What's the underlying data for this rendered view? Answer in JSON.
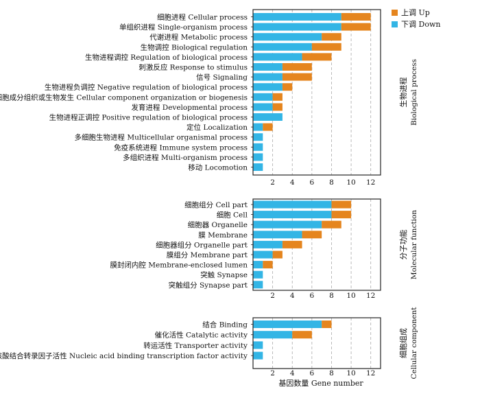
{
  "colors": {
    "down": "#33b5e5",
    "up": "#e5851e",
    "frame": "#222222",
    "grid": "#aaaaaa"
  },
  "legend": {
    "up_label": "上调  Up",
    "down_label": "下调  Down"
  },
  "xlabel": "基因数量  Gene number",
  "chart_data": [
    {
      "type": "bar",
      "stacked": true,
      "orientation": "horizontal",
      "panel_label_cn": "生物进程",
      "panel_label_en": "Biological process",
      "categories": [
        "细胞进程  Cellular process",
        "单组织进程  Single-organism process",
        "代谢进程  Metabolic process",
        "生物调控  Biological regulation",
        "生物进程调控  Regulation of biological process",
        "刺激反应  Response to stimulus",
        "信号  Signaling",
        "生物进程负调控  Negative regulation of biological process",
        "细胞成分组织或生物发生  Cellular component organization or biogenesis",
        "发育进程  Developmental process",
        "生物进程正调控  Positive regulation of biological process",
        "定位  Localization",
        "多细胞生物进程  Multicellular organismal process",
        "免疫系统进程  Immune system process",
        "多组织进程  Multi-organism process",
        "移动  Locomotion"
      ],
      "series": [
        {
          "name": "下调  Down",
          "values": [
            9,
            9,
            7,
            6,
            5,
            3,
            3,
            3,
            2,
            2,
            3,
            1,
            1,
            1,
            1,
            1
          ]
        },
        {
          "name": "上调  Up",
          "values": [
            3,
            3,
            2,
            3,
            3,
            3,
            3,
            1,
            1,
            1,
            0,
            1,
            0,
            0,
            0,
            0
          ]
        }
      ],
      "x_ticks": [
        2,
        4,
        6,
        8,
        10,
        12
      ],
      "xlim": [
        0,
        13
      ],
      "grid": "vertical-dashed"
    },
    {
      "type": "bar",
      "stacked": true,
      "orientation": "horizontal",
      "panel_label_cn": "分子功能",
      "panel_label_en": "Molecular function",
      "categories": [
        "细胞组分  Cell part",
        "细胞  Cell",
        "细胞器  Organelle",
        "膜  Membrane",
        "细胞器组分  Organelle part",
        "膜组分  Membrane part",
        "膜封闭内腔  Membrane-enclosed lumen",
        "突触  Synapse",
        "突触组分  Synapse part"
      ],
      "series": [
        {
          "name": "下调  Down",
          "values": [
            8,
            8,
            7,
            5,
            3,
            2,
            1,
            1,
            1
          ]
        },
        {
          "name": "上调  Up",
          "values": [
            2,
            2,
            2,
            2,
            2,
            1,
            1,
            0,
            0
          ]
        }
      ],
      "x_ticks": [
        2,
        4,
        6,
        8,
        10,
        12
      ],
      "xlim": [
        0,
        13
      ],
      "grid": "vertical-dashed"
    },
    {
      "type": "bar",
      "stacked": true,
      "orientation": "horizontal",
      "panel_label_cn": "细胞组成",
      "panel_label_en": "Cellular component",
      "categories": [
        "结合  Binding",
        "催化活性  Catalytic activity",
        "转运活性  Transporter activity",
        "核酸结合转录因子活性  Nucleic acid binding transcription factor activity"
      ],
      "series": [
        {
          "name": "下调  Down",
          "values": [
            7,
            4,
            1,
            1
          ]
        },
        {
          "name": "上调  Up",
          "values": [
            1,
            2,
            0,
            0
          ]
        }
      ],
      "x_ticks": [
        2,
        4,
        6,
        8,
        10,
        12
      ],
      "xlim": [
        0,
        13
      ],
      "grid": "vertical-dashed"
    }
  ]
}
